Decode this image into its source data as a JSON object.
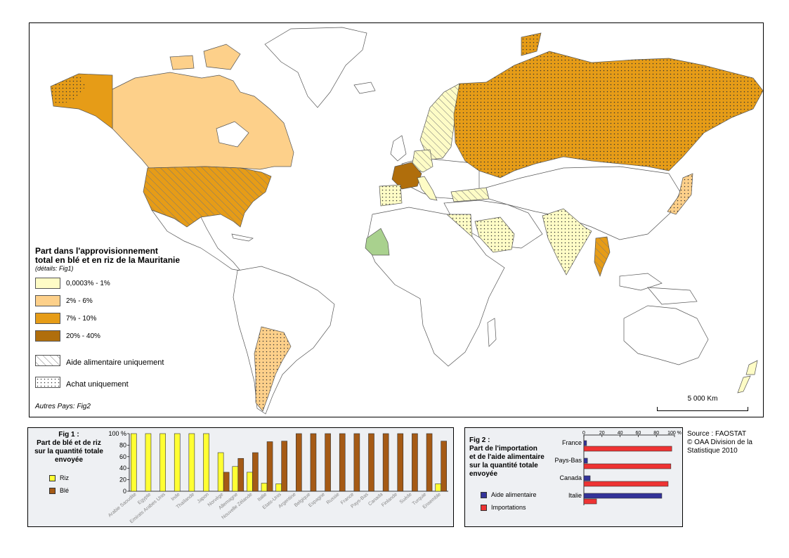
{
  "legend": {
    "title_line1": "Part dans l'approvisionnement",
    "title_line2": "total en blé et en riz de la Mauritanie",
    "details": "(détails: Fig1)",
    "classes": [
      {
        "label": "0,0003% - 1%",
        "color": "#fefcc6"
      },
      {
        "label": "2% - 6%",
        "color": "#fdd08a"
      },
      {
        "label": "7% - 10%",
        "color": "#e69c17"
      },
      {
        "label": "20% - 40%",
        "color": "#b06e0c"
      }
    ],
    "aid_only": "Aide alimentaire uniquement",
    "purchase_only": "Achat uniquement",
    "others": "Autres Pays: Fig2"
  },
  "scale": {
    "label": "5 000 Km"
  },
  "colors": {
    "mauritania": "#a9d18e",
    "riz": "#ffff33",
    "ble": "#a55a15",
    "aide": "#333399",
    "importations": "#ee3333"
  },
  "fig1": {
    "title_line1": "Fig 1 :",
    "title_line2": "Part de blé et de riz",
    "title_line3": "sur la quantité totale",
    "title_line4": "envoyée",
    "legend_riz": "Riz",
    "legend_ble": "Blé",
    "chart_data": {
      "type": "bar",
      "categories": [
        "Arabie Saoudite",
        "Egypte",
        "Emirats Arabes Unis",
        "Inde",
        "Thaïlande",
        "Japon",
        "Norvège",
        "Allemagne",
        "Nouvelle Zélande",
        "Italie",
        "Etats-Unis",
        "Argentine",
        "Belgique",
        "Espagne",
        "Russie",
        "France",
        "Pays-Bas",
        "Canada",
        "Finlande",
        "Suède",
        "Turquie",
        "Ensemble"
      ],
      "series": [
        {
          "name": "Riz",
          "values": [
            100,
            100,
            100,
            100,
            100,
            100,
            67,
            43,
            33,
            14,
            13,
            0,
            0,
            0,
            0,
            0,
            0,
            0,
            0,
            0,
            0,
            13
          ]
        },
        {
          "name": "Blé",
          "values": [
            0,
            0,
            0,
            0,
            0,
            0,
            33,
            57,
            67,
            86,
            87,
            100,
            100,
            100,
            100,
            100,
            100,
            100,
            100,
            100,
            100,
            87
          ]
        }
      ],
      "ylim": [
        0,
        100
      ],
      "yticks": [
        "0",
        "20",
        "40",
        "60",
        "80",
        "100 %"
      ]
    }
  },
  "fig2": {
    "title_line1": "Fig 2 :",
    "title_line2": "Part de l'importation",
    "title_line3": "et de l'aide alimentaire",
    "title_line4": "sur la quantité totale",
    "title_line5": "envoyée",
    "legend_aide": "Aide alimentaire",
    "legend_imp": "Importations",
    "chart_data": {
      "type": "bar",
      "orientation": "horizontal",
      "categories": [
        "France",
        "Pays-Bas",
        "Canada",
        "Italie"
      ],
      "series": [
        {
          "name": "Aide alimentaire",
          "values": [
            3,
            4,
            7,
            86
          ]
        },
        {
          "name": "Importations",
          "values": [
            97,
            96,
            93,
            14
          ]
        }
      ],
      "xlim": [
        0,
        100
      ],
      "xticks": [
        "0",
        "20",
        "40",
        "60",
        "80",
        "100 %"
      ]
    }
  },
  "source": {
    "line1": "Source : FAOSTAT",
    "line2": "© OAA Division de la",
    "line3": "Statistique 2010"
  }
}
